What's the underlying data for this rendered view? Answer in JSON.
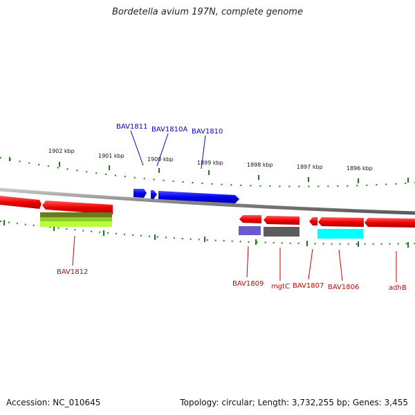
{
  "title": "Bordetella avium 197N, complete genome",
  "footer": {
    "accession": "Accession: NC_010645",
    "summary": "Topology: circular; Length: 3,732,255 bp; Genes: 3,455"
  },
  "colors": {
    "forward_gene": "#0000ee",
    "reverse_gene": "#ee0000",
    "backbone": "#8a8a8a",
    "tick": "#1a7a1a",
    "forward_label": "#0000cc",
    "reverse_label": "#cc0000"
  },
  "kbp_labels": [
    "1902 kbp",
    "1901 kbp",
    "1900 kbp",
    "1899 kbp",
    "1898 kbp",
    "1897 kbp",
    "1896 kbp"
  ],
  "forward_labels": [
    "BAV1811",
    "BAV1810A",
    "BAV1810"
  ],
  "reverse_labels": [
    "BAV1812",
    "BAV1809",
    "mgtC",
    "BAV1807",
    "BAV1806",
    "adhB"
  ]
}
